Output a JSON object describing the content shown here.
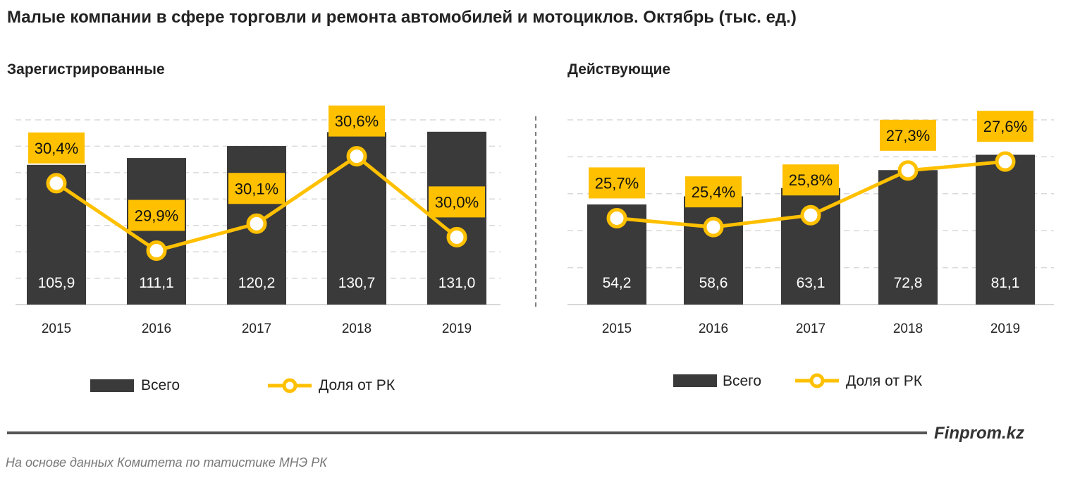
{
  "title": "Малые компании в сфере торговли и ремонта автомобилей и мотоциклов. Октябрь (тыс. ед.)",
  "colors": {
    "bar": "#3a3a3a",
    "line": "#FFC000",
    "label_bg": "#FFC000",
    "grid": "#d9d9d9"
  },
  "legend": {
    "bar_label": "Всего",
    "line_label": "Доля от РК",
    "placement": "bottom"
  },
  "brand": "Finprom.kz",
  "source": "На основе данных  Комитета по татистике МНЭ РК",
  "chart_data": [
    {
      "type": "bar+line",
      "title": "Зарегистрированные",
      "categories": [
        "2015",
        "2016",
        "2017",
        "2018",
        "2019"
      ],
      "series": [
        {
          "name": "Всего",
          "type": "bar",
          "values": [
            105.9,
            111.1,
            120.2,
            130.7,
            131.0
          ],
          "labels": [
            "105,9",
            "111,1",
            "120,2",
            "130,7",
            "131,0"
          ]
        },
        {
          "name": "Доля от РК",
          "type": "line",
          "axis": "secondary",
          "values": [
            30.4,
            29.9,
            30.1,
            30.6,
            30.0
          ],
          "labels": [
            "30,4%",
            "29,9%",
            "30,1%",
            "30,6%",
            "30,0%"
          ]
        }
      ],
      "ylim": [
        0,
        140
      ],
      "y2lim": [
        29.5,
        30.87
      ],
      "grid": true
    },
    {
      "type": "bar+line",
      "title": "Действующие",
      "categories": [
        "2015",
        "2016",
        "2017",
        "2018",
        "2019"
      ],
      "series": [
        {
          "name": "Всего",
          "type": "bar",
          "values": [
            54.2,
            58.6,
            63.1,
            72.8,
            81.1
          ],
          "labels": [
            "54,2",
            "58,6",
            "63,1",
            "72,8",
            "81,1"
          ]
        },
        {
          "name": "Доля от РК",
          "type": "line",
          "axis": "secondary",
          "values": [
            25.7,
            25.4,
            25.8,
            27.3,
            27.6
          ],
          "labels": [
            "25,7%",
            "25,4%",
            "25,8%",
            "27,3%",
            "27,6%"
          ]
        }
      ],
      "ylim": [
        0,
        100
      ],
      "y2lim": [
        22.8,
        29.0
      ],
      "grid": true
    }
  ]
}
